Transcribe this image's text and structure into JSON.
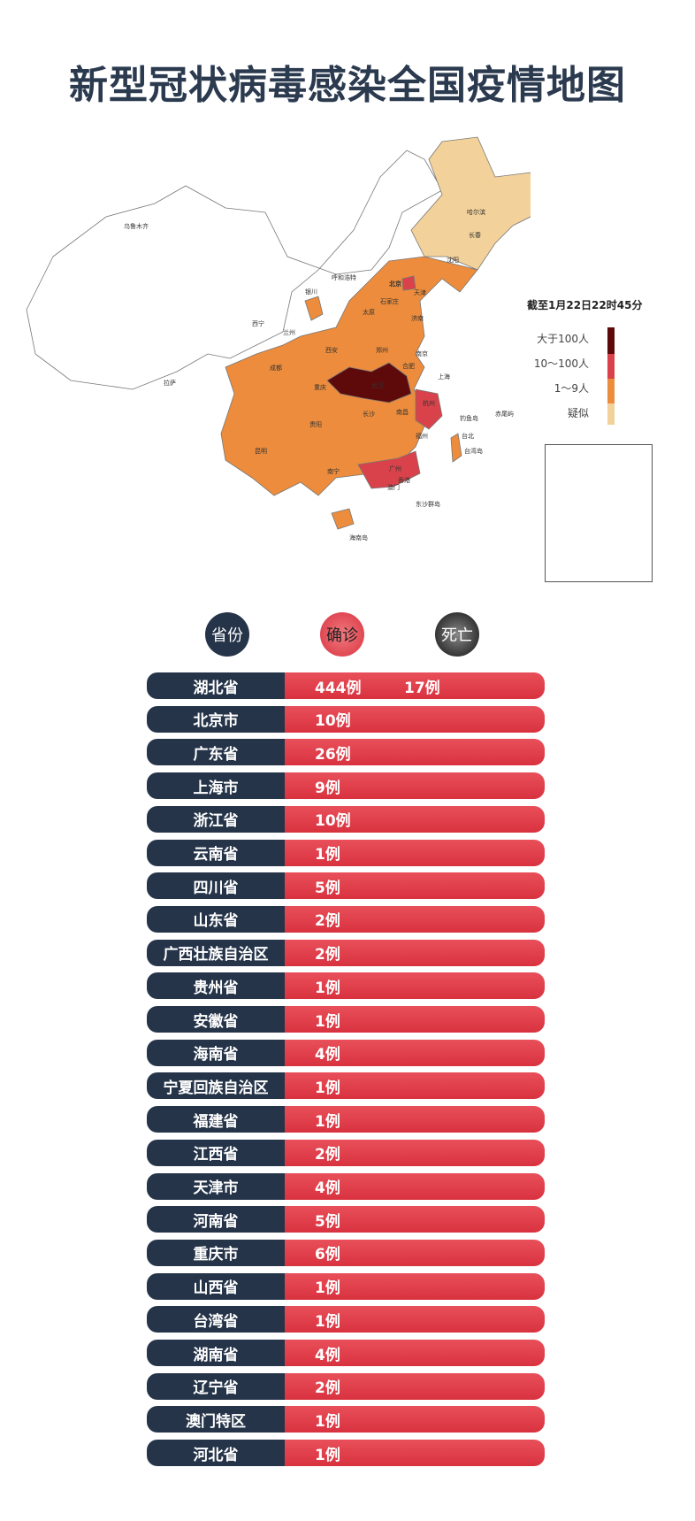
{
  "title": "新型冠状病毒感染全国疫情地图",
  "legend": {
    "as_of": "截至1月22日22时45分",
    "items": [
      {
        "label": "大于100人",
        "color": "#5e0a0a"
      },
      {
        "label": "10～100人",
        "color": "#d9424a"
      },
      {
        "label": "1～9人",
        "color": "#ec8c3c"
      },
      {
        "label": "疑似",
        "color": "#f2d29a"
      }
    ]
  },
  "map_labels": [
    "乌鲁木齐",
    "哈尔滨",
    "长春",
    "沈阳",
    "呼和浩特",
    "北京",
    "天津",
    "石家庄",
    "太原",
    "济南",
    "西宁",
    "兰州",
    "银川",
    "西安",
    "郑州",
    "南京",
    "合肥",
    "上海",
    "武汉",
    "杭州",
    "拉萨",
    "成都",
    "重庆",
    "长沙",
    "南昌",
    "福州",
    "贵阳",
    "昆明",
    "南宁",
    "广州",
    "香港",
    "澳门",
    "台北",
    "台湾岛",
    "钓鱼岛",
    "赤尾屿",
    "东沙群岛",
    "海南岛"
  ],
  "table": {
    "headers": [
      "省份",
      "确诊",
      "死亡"
    ],
    "rows": [
      {
        "province": "湖北省",
        "confirmed": "444例",
        "deaths": "17例"
      },
      {
        "province": "北京市",
        "confirmed": "10例",
        "deaths": ""
      },
      {
        "province": "广东省",
        "confirmed": "26例",
        "deaths": ""
      },
      {
        "province": "上海市",
        "confirmed": "9例",
        "deaths": ""
      },
      {
        "province": "浙江省",
        "confirmed": "10例",
        "deaths": ""
      },
      {
        "province": "云南省",
        "confirmed": "1例",
        "deaths": ""
      },
      {
        "province": "四川省",
        "confirmed": "5例",
        "deaths": ""
      },
      {
        "province": "山东省",
        "confirmed": "2例",
        "deaths": ""
      },
      {
        "province": "广西壮族自治区",
        "confirmed": "2例",
        "deaths": ""
      },
      {
        "province": "贵州省",
        "confirmed": "1例",
        "deaths": ""
      },
      {
        "province": "安徽省",
        "confirmed": "1例",
        "deaths": ""
      },
      {
        "province": "海南省",
        "confirmed": "4例",
        "deaths": ""
      },
      {
        "province": "宁夏回族自治区",
        "confirmed": "1例",
        "deaths": ""
      },
      {
        "province": "福建省",
        "confirmed": "1例",
        "deaths": ""
      },
      {
        "province": "江西省",
        "confirmed": "2例",
        "deaths": ""
      },
      {
        "province": "天津市",
        "confirmed": "4例",
        "deaths": ""
      },
      {
        "province": "河南省",
        "confirmed": "5例",
        "deaths": ""
      },
      {
        "province": "重庆市",
        "confirmed": "6例",
        "deaths": ""
      },
      {
        "province": "山西省",
        "confirmed": "1例",
        "deaths": ""
      },
      {
        "province": "台湾省",
        "confirmed": "1例",
        "deaths": ""
      },
      {
        "province": "湖南省",
        "confirmed": "4例",
        "deaths": ""
      },
      {
        "province": "辽宁省",
        "confirmed": "2例",
        "deaths": ""
      },
      {
        "province": "澳门特区",
        "confirmed": "1例",
        "deaths": ""
      },
      {
        "province": "河北省",
        "confirmed": "1例",
        "deaths": ""
      }
    ]
  }
}
